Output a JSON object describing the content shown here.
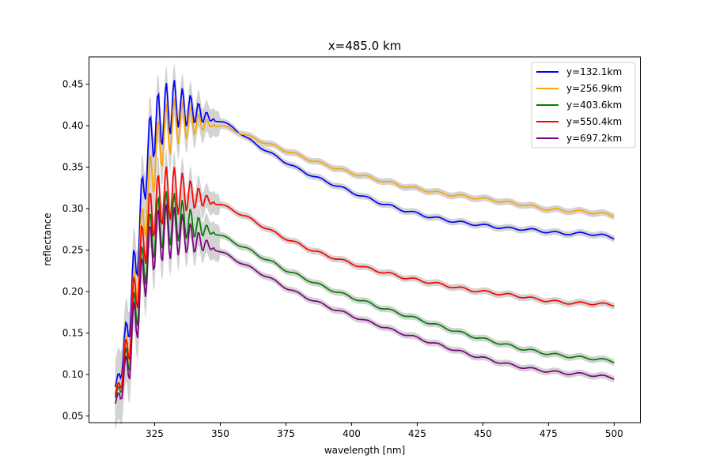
{
  "chart_data": {
    "type": "line",
    "title": "x=485.0 km",
    "xlabel": "wavelength [nm]",
    "ylabel": "reflectance",
    "xlim": [
      300,
      510
    ],
    "ylim": [
      0.042,
      0.483
    ],
    "xticks": [
      325,
      350,
      375,
      400,
      425,
      450,
      475,
      500
    ],
    "yticks": [
      0.05,
      0.1,
      0.15,
      0.2,
      0.25,
      0.3,
      0.35,
      0.4,
      0.45
    ],
    "x_start": 310,
    "x_end": 500,
    "legend_position": "upper-right",
    "uncertainty_band": "gray shaded band around each series",
    "series": [
      {
        "name": "y=132.1km",
        "color": "#0000ff",
        "points": [
          [
            310,
            0.085
          ],
          [
            312,
            0.105
          ],
          [
            314,
            0.14
          ],
          [
            316,
            0.19
          ],
          [
            318,
            0.24
          ],
          [
            320,
            0.3
          ],
          [
            322,
            0.36
          ],
          [
            324,
            0.39
          ],
          [
            326,
            0.405
          ],
          [
            328,
            0.41
          ],
          [
            330,
            0.42
          ],
          [
            332,
            0.425
          ],
          [
            334,
            0.425
          ],
          [
            336,
            0.42
          ],
          [
            338,
            0.42
          ],
          [
            340,
            0.418
          ],
          [
            342,
            0.415
          ],
          [
            345,
            0.41
          ],
          [
            350,
            0.405
          ],
          [
            355,
            0.398
          ],
          [
            360,
            0.385
          ],
          [
            365,
            0.375
          ],
          [
            370,
            0.365
          ],
          [
            375,
            0.356
          ],
          [
            380,
            0.347
          ],
          [
            385,
            0.34
          ],
          [
            390,
            0.333
          ],
          [
            395,
            0.327
          ],
          [
            400,
            0.32
          ],
          [
            405,
            0.314
          ],
          [
            410,
            0.308
          ],
          [
            415,
            0.303
          ],
          [
            420,
            0.298
          ],
          [
            425,
            0.294
          ],
          [
            430,
            0.29
          ],
          [
            435,
            0.287
          ],
          [
            440,
            0.284
          ],
          [
            445,
            0.282
          ],
          [
            450,
            0.28
          ],
          [
            455,
            0.278
          ],
          [
            460,
            0.276
          ],
          [
            465,
            0.2755
          ],
          [
            470,
            0.274
          ],
          [
            475,
            0.272
          ],
          [
            480,
            0.27
          ],
          [
            485,
            0.27
          ],
          [
            490,
            0.27
          ],
          [
            495,
            0.268
          ],
          [
            500,
            0.265
          ]
        ]
      },
      {
        "name": "y=256.9km",
        "color": "#ffa500",
        "points": [
          [
            310,
            0.078
          ],
          [
            312,
            0.095
          ],
          [
            314,
            0.125
          ],
          [
            316,
            0.165
          ],
          [
            318,
            0.215
          ],
          [
            320,
            0.265
          ],
          [
            322,
            0.31
          ],
          [
            324,
            0.345
          ],
          [
            326,
            0.37
          ],
          [
            328,
            0.385
          ],
          [
            330,
            0.395
          ],
          [
            332,
            0.402
          ],
          [
            334,
            0.405
          ],
          [
            336,
            0.405
          ],
          [
            338,
            0.405
          ],
          [
            340,
            0.404
          ],
          [
            345,
            0.402
          ],
          [
            350,
            0.4
          ],
          [
            355,
            0.395
          ],
          [
            360,
            0.388
          ],
          [
            365,
            0.382
          ],
          [
            370,
            0.376
          ],
          [
            375,
            0.37
          ],
          [
            380,
            0.364
          ],
          [
            385,
            0.358
          ],
          [
            390,
            0.353
          ],
          [
            395,
            0.348
          ],
          [
            400,
            0.343
          ],
          [
            405,
            0.339
          ],
          [
            410,
            0.335
          ],
          [
            415,
            0.331
          ],
          [
            420,
            0.327
          ],
          [
            425,
            0.324
          ],
          [
            430,
            0.321
          ],
          [
            435,
            0.318
          ],
          [
            440,
            0.316
          ],
          [
            445,
            0.314
          ],
          [
            450,
            0.312
          ],
          [
            455,
            0.31
          ],
          [
            460,
            0.307
          ],
          [
            465,
            0.305
          ],
          [
            470,
            0.302
          ],
          [
            475,
            0.299
          ],
          [
            480,
            0.298
          ],
          [
            485,
            0.297
          ],
          [
            490,
            0.296
          ],
          [
            495,
            0.294
          ],
          [
            500,
            0.292
          ]
        ]
      },
      {
        "name": "y=403.6km",
        "color": "#008000",
        "points": [
          [
            310,
            0.072
          ],
          [
            312,
            0.088
          ],
          [
            314,
            0.11
          ],
          [
            316,
            0.145
          ],
          [
            318,
            0.185
          ],
          [
            320,
            0.22
          ],
          [
            322,
            0.25
          ],
          [
            324,
            0.27
          ],
          [
            326,
            0.28
          ],
          [
            328,
            0.285
          ],
          [
            330,
            0.288
          ],
          [
            332,
            0.289
          ],
          [
            334,
            0.288
          ],
          [
            336,
            0.286
          ],
          [
            338,
            0.283
          ],
          [
            340,
            0.28
          ],
          [
            345,
            0.274
          ],
          [
            350,
            0.268
          ],
          [
            355,
            0.26
          ],
          [
            360,
            0.252
          ],
          [
            365,
            0.243
          ],
          [
            370,
            0.235
          ],
          [
            375,
            0.226
          ],
          [
            380,
            0.219
          ],
          [
            385,
            0.212
          ],
          [
            390,
            0.205
          ],
          [
            395,
            0.199
          ],
          [
            400,
            0.193
          ],
          [
            405,
            0.188
          ],
          [
            410,
            0.182
          ],
          [
            415,
            0.177
          ],
          [
            420,
            0.172
          ],
          [
            425,
            0.167
          ],
          [
            430,
            0.162
          ],
          [
            435,
            0.157
          ],
          [
            440,
            0.152
          ],
          [
            445,
            0.147
          ],
          [
            450,
            0.143
          ],
          [
            455,
            0.139
          ],
          [
            460,
            0.135
          ],
          [
            465,
            0.131
          ],
          [
            470,
            0.128
          ],
          [
            475,
            0.125
          ],
          [
            480,
            0.123
          ],
          [
            485,
            0.121
          ],
          [
            490,
            0.12
          ],
          [
            495,
            0.118
          ],
          [
            500,
            0.116
          ]
        ]
      },
      {
        "name": "y=550.4km",
        "color": "#ff0000",
        "points": [
          [
            310,
            0.075
          ],
          [
            312,
            0.093
          ],
          [
            314,
            0.12
          ],
          [
            316,
            0.16
          ],
          [
            318,
            0.205
          ],
          [
            320,
            0.245
          ],
          [
            322,
            0.275
          ],
          [
            324,
            0.295
          ],
          [
            326,
            0.307
          ],
          [
            328,
            0.314
          ],
          [
            330,
            0.318
          ],
          [
            332,
            0.32
          ],
          [
            334,
            0.32
          ],
          [
            336,
            0.319
          ],
          [
            338,
            0.317
          ],
          [
            340,
            0.315
          ],
          [
            345,
            0.31
          ],
          [
            350,
            0.305
          ],
          [
            355,
            0.298
          ],
          [
            360,
            0.29
          ],
          [
            365,
            0.281
          ],
          [
            370,
            0.272
          ],
          [
            375,
            0.264
          ],
          [
            380,
            0.257
          ],
          [
            385,
            0.25
          ],
          [
            390,
            0.244
          ],
          [
            395,
            0.239
          ],
          [
            400,
            0.234
          ],
          [
            405,
            0.229
          ],
          [
            410,
            0.225
          ],
          [
            415,
            0.221
          ],
          [
            420,
            0.217
          ],
          [
            425,
            0.214
          ],
          [
            430,
            0.211
          ],
          [
            435,
            0.208
          ],
          [
            440,
            0.205
          ],
          [
            445,
            0.202
          ],
          [
            450,
            0.2
          ],
          [
            455,
            0.198
          ],
          [
            460,
            0.196
          ],
          [
            465,
            0.194
          ],
          [
            470,
            0.191
          ],
          [
            475,
            0.189
          ],
          [
            480,
            0.187
          ],
          [
            485,
            0.186
          ],
          [
            490,
            0.186
          ],
          [
            495,
            0.185
          ],
          [
            500,
            0.184
          ]
        ]
      },
      {
        "name": "y=697.2km",
        "color": "#800080",
        "points": [
          [
            310,
            0.065
          ],
          [
            312,
            0.08
          ],
          [
            314,
            0.1
          ],
          [
            316,
            0.135
          ],
          [
            318,
            0.17
          ],
          [
            320,
            0.205
          ],
          [
            322,
            0.235
          ],
          [
            324,
            0.255
          ],
          [
            326,
            0.265
          ],
          [
            328,
            0.27
          ],
          [
            330,
            0.272
          ],
          [
            332,
            0.272
          ],
          [
            334,
            0.271
          ],
          [
            336,
            0.269
          ],
          [
            338,
            0.266
          ],
          [
            340,
            0.262
          ],
          [
            345,
            0.256
          ],
          [
            350,
            0.248
          ],
          [
            355,
            0.24
          ],
          [
            360,
            0.231
          ],
          [
            365,
            0.223
          ],
          [
            370,
            0.214
          ],
          [
            375,
            0.205
          ],
          [
            380,
            0.197
          ],
          [
            385,
            0.19
          ],
          [
            390,
            0.183
          ],
          [
            395,
            0.177
          ],
          [
            400,
            0.171
          ],
          [
            405,
            0.165
          ],
          [
            410,
            0.16
          ],
          [
            415,
            0.154
          ],
          [
            420,
            0.149
          ],
          [
            425,
            0.144
          ],
          [
            430,
            0.139
          ],
          [
            435,
            0.134
          ],
          [
            440,
            0.129
          ],
          [
            445,
            0.124
          ],
          [
            450,
            0.12
          ],
          [
            455,
            0.116
          ],
          [
            460,
            0.112
          ],
          [
            465,
            0.109
          ],
          [
            470,
            0.106
          ],
          [
            475,
            0.104
          ],
          [
            480,
            0.102
          ],
          [
            485,
            0.101
          ],
          [
            490,
            0.1
          ],
          [
            495,
            0.098
          ],
          [
            500,
            0.096
          ]
        ]
      }
    ]
  }
}
